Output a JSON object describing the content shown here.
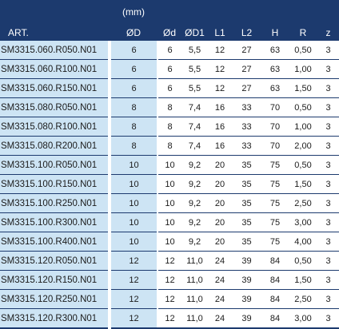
{
  "unit_label": "(mm)",
  "columns": [
    "ART.",
    "ØD",
    "Ød",
    "ØD1",
    "L1",
    "L2",
    "H",
    "R",
    "z"
  ],
  "rows": [
    [
      "SM3315.060.R050.N01",
      "6",
      "6",
      "5,5",
      "12",
      "27",
      "63",
      "0,50",
      "3"
    ],
    [
      "SM3315.060.R100.N01",
      "6",
      "6",
      "5,5",
      "12",
      "27",
      "63",
      "1,00",
      "3"
    ],
    [
      "SM3315.060.R150.N01",
      "6",
      "6",
      "5,5",
      "12",
      "27",
      "63",
      "1,50",
      "3"
    ],
    [
      "SM3315.080.R050.N01",
      "8",
      "8",
      "7,4",
      "16",
      "33",
      "70",
      "0,50",
      "3"
    ],
    [
      "SM3315.080.R100.N01",
      "8",
      "8",
      "7,4",
      "16",
      "33",
      "70",
      "1,00",
      "3"
    ],
    [
      "SM3315.080.R200.N01",
      "8",
      "8",
      "7,4",
      "16",
      "33",
      "70",
      "2,00",
      "3"
    ],
    [
      "SM3315.100.R050.N01",
      "10",
      "10",
      "9,2",
      "20",
      "35",
      "75",
      "0,50",
      "3"
    ],
    [
      "SM3315.100.R150.N01",
      "10",
      "10",
      "9,2",
      "20",
      "35",
      "75",
      "1,50",
      "3"
    ],
    [
      "SM3315.100.R250.N01",
      "10",
      "10",
      "9,2",
      "20",
      "35",
      "75",
      "2,50",
      "3"
    ],
    [
      "SM3315.100.R300.N01",
      "10",
      "10",
      "9,2",
      "20",
      "35",
      "75",
      "3,00",
      "3"
    ],
    [
      "SM3315.100.R400.N01",
      "10",
      "10",
      "9,2",
      "20",
      "35",
      "75",
      "4,00",
      "3"
    ],
    [
      "SM3315.120.R050.N01",
      "12",
      "12",
      "11,0",
      "24",
      "39",
      "84",
      "0,50",
      "3"
    ],
    [
      "SM3315.120.R150.N01",
      "12",
      "12",
      "11,0",
      "24",
      "39",
      "84",
      "1,50",
      "3"
    ],
    [
      "SM3315.120.R250.N01",
      "12",
      "12",
      "11,0",
      "24",
      "39",
      "84",
      "2,50",
      "3"
    ],
    [
      "SM3315.120.R300.N01",
      "12",
      "12",
      "11,0",
      "24",
      "39",
      "84",
      "3,00",
      "3"
    ]
  ]
}
